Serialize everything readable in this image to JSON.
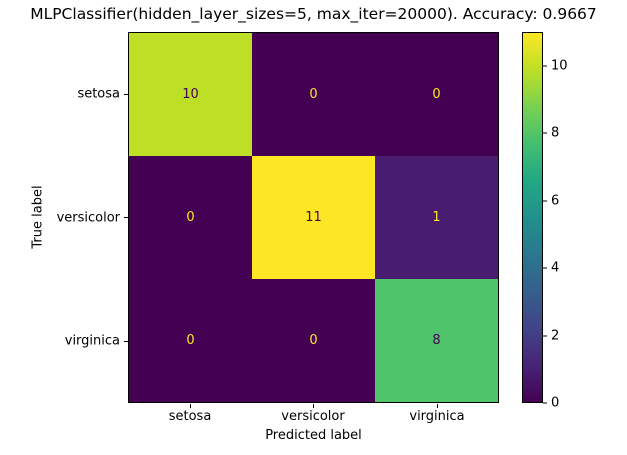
{
  "title": "MLPClassifier(hidden_layer_sizes=5, max_iter=20000). Accuracy: 0.9667",
  "chart_data": {
    "type": "heatmap",
    "subtype": "confusion-matrix",
    "title": "MLPClassifier(hidden_layer_sizes=5, max_iter=20000). Accuracy: 0.9667",
    "xlabel": "Predicted label",
    "ylabel": "True label",
    "x_categories": [
      "setosa",
      "versicolor",
      "virginica"
    ],
    "y_categories": [
      "setosa",
      "versicolor",
      "virginica"
    ],
    "matrix": [
      [
        10,
        0,
        0
      ],
      [
        0,
        11,
        1
      ],
      [
        0,
        0,
        8
      ]
    ],
    "colormap": "viridis",
    "cell_colors": [
      [
        "#bddf26",
        "#440154",
        "#440154"
      ],
      [
        "#440154",
        "#fde725",
        "#481d6f"
      ],
      [
        "#440154",
        "#440154",
        "#50c46a"
      ]
    ],
    "cell_text_colors": [
      [
        "#440154",
        "#fde725",
        "#fde725"
      ],
      [
        "#fde725",
        "#440154",
        "#fde725"
      ],
      [
        "#fde725",
        "#fde725",
        "#440154"
      ]
    ],
    "colorbar": {
      "position": "right",
      "min": 0,
      "max": 11,
      "ticks": [
        0,
        2,
        4,
        6,
        8,
        10
      ],
      "min_color": "#440154",
      "max_color": "#fde725"
    },
    "grid": false,
    "accuracy": "0.9667"
  }
}
